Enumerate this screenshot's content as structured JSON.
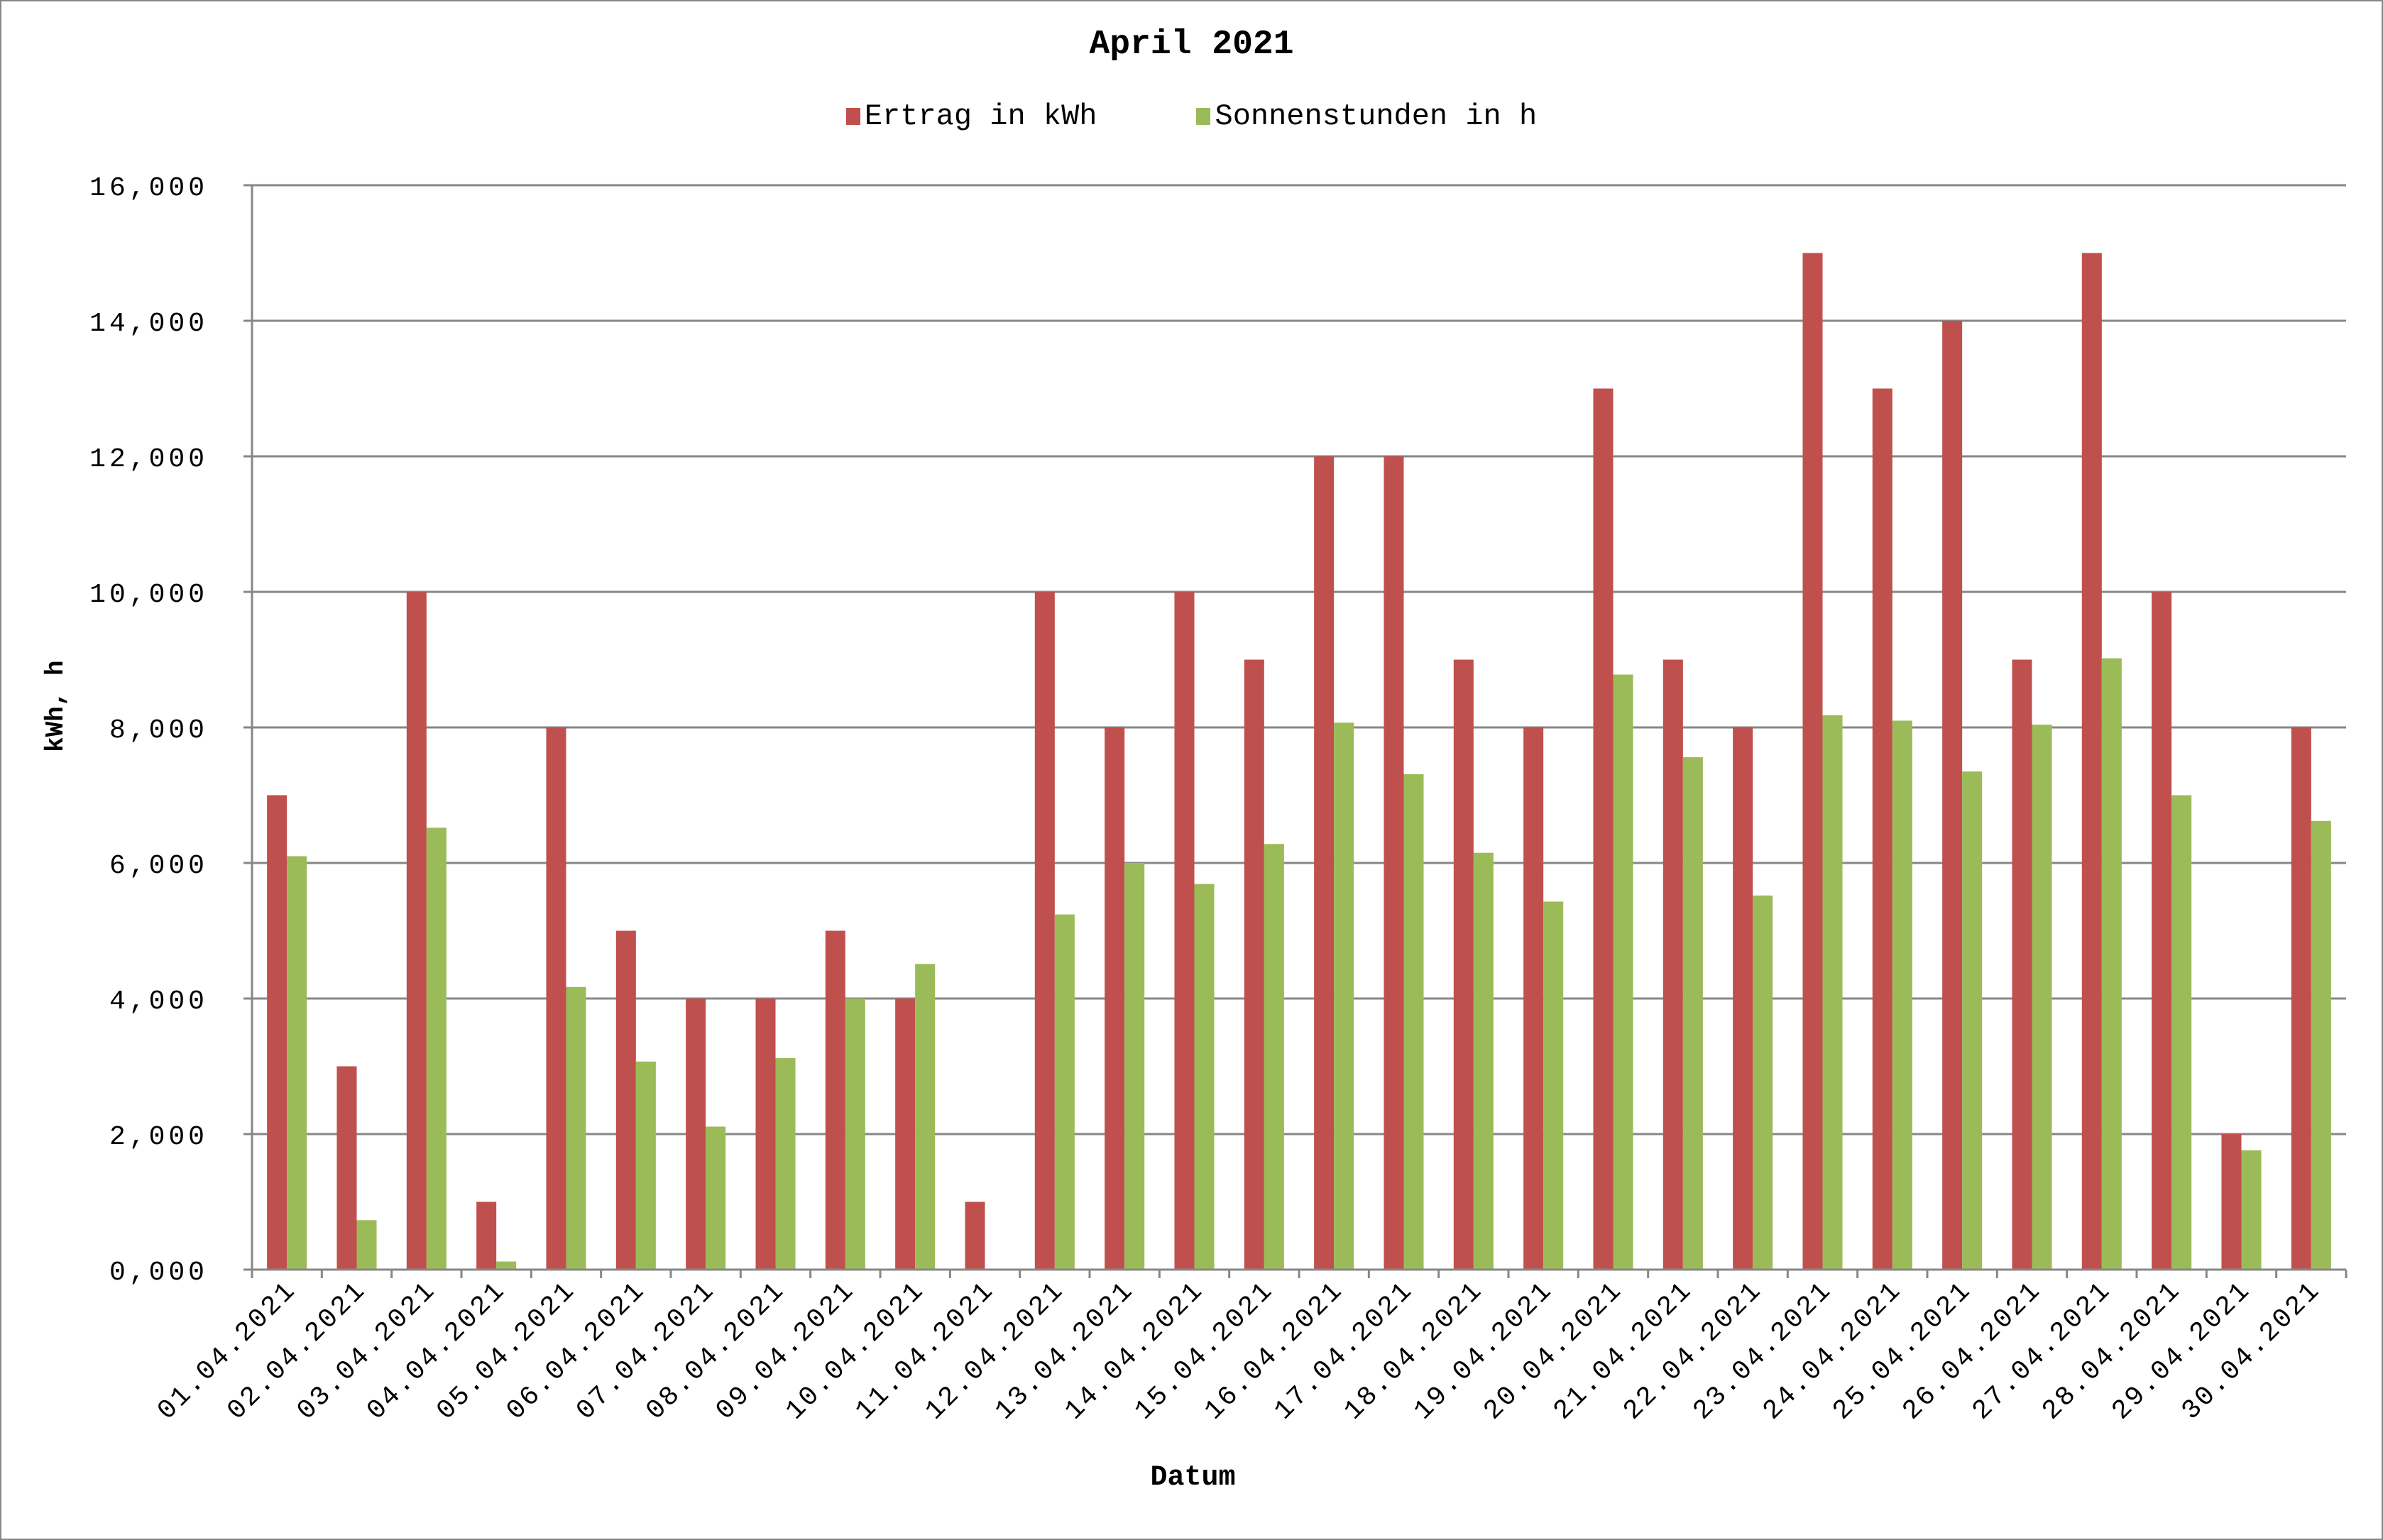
{
  "title": "April 2021",
  "legend": [
    {
      "label": "Ertrag in kWh",
      "color": "#c0504d"
    },
    {
      "label": "Sonnenstunden in h",
      "color": "#9bbb59"
    }
  ],
  "axes": {
    "ylabel": "kWh, h",
    "xlabel": "Datum",
    "yticks": [
      "0,000",
      "2,000",
      "4,000",
      "6,000",
      "8,000",
      "10,000",
      "12,000",
      "14,000",
      "16,000"
    ]
  },
  "colors": {
    "ertrag": "#c0504d",
    "sonnen": "#9bbb59",
    "grid": "#878787",
    "frame": "#878787"
  },
  "chart_data": {
    "type": "bar",
    "title": "April 2021",
    "xlabel": "Datum",
    "ylabel": "kWh, h",
    "ylim": [
      0,
      16
    ],
    "ytick_step": 2,
    "grid": true,
    "legend_position": "top",
    "categories": [
      "01.04.2021",
      "02.04.2021",
      "03.04.2021",
      "04.04.2021",
      "05.04.2021",
      "06.04.2021",
      "07.04.2021",
      "08.04.2021",
      "09.04.2021",
      "10.04.2021",
      "11.04.2021",
      "12.04.2021",
      "13.04.2021",
      "14.04.2021",
      "15.04.2021",
      "16.04.2021",
      "17.04.2021",
      "18.04.2021",
      "19.04.2021",
      "20.04.2021",
      "21.04.2021",
      "22.04.2021",
      "23.04.2021",
      "24.04.2021",
      "25.04.2021",
      "26.04.2021",
      "27.04.2021",
      "28.04.2021",
      "29.04.2021",
      "30.04.2021"
    ],
    "series": [
      {
        "name": "Ertrag in kWh",
        "color": "#c0504d",
        "values": [
          7,
          3,
          10,
          1,
          8,
          5,
          4,
          4,
          5,
          4,
          1,
          10,
          8,
          10,
          9,
          12,
          12,
          9,
          8,
          13,
          9,
          8,
          15,
          13,
          14,
          9,
          15,
          10,
          2,
          8
        ]
      },
      {
        "name": "Sonnenstunden in h",
        "color": "#9bbb59",
        "values": [
          6.1,
          0.73,
          6.52,
          0.12,
          4.17,
          3.07,
          2.11,
          3.12,
          4.0,
          4.51,
          0,
          5.24,
          6.0,
          5.69,
          6.28,
          8.07,
          7.31,
          6.15,
          5.43,
          8.78,
          7.56,
          5.52,
          8.18,
          8.1,
          7.35,
          8.04,
          9.02,
          7.0,
          1.76,
          6.62
        ]
      }
    ]
  }
}
